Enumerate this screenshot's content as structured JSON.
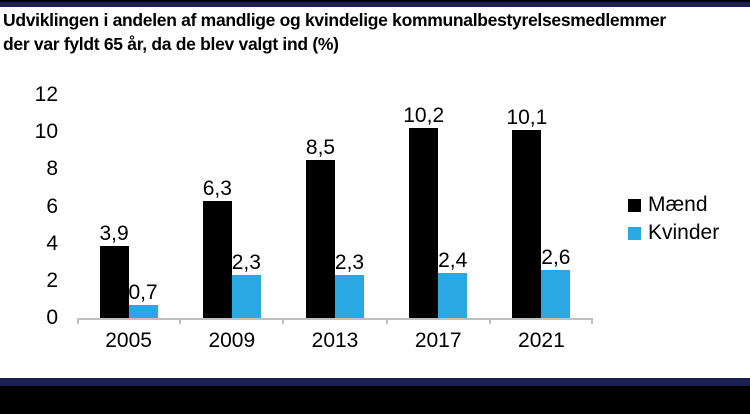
{
  "title": {
    "line1": "Udviklingen i andelen af mandlige og kvindelige kommunalbestyrelsesmedlemmer",
    "line2": "der var fyldt 65 år, da de blev valgt ind (%)"
  },
  "chart_data": {
    "type": "bar",
    "categories": [
      "2005",
      "2009",
      "2013",
      "2017",
      "2021"
    ],
    "series": [
      {
        "name": "Mænd",
        "color": "#000000",
        "values": [
          3.9,
          6.3,
          8.5,
          10.2,
          10.1
        ],
        "labels": [
          "3,9",
          "6,3",
          "8,5",
          "10,2",
          "10,1"
        ]
      },
      {
        "name": "Kvinder",
        "color": "#29A8E4",
        "values": [
          0.7,
          2.3,
          2.3,
          2.4,
          2.6
        ],
        "labels": [
          "0,7",
          "2,3",
          "2,3",
          "2,4",
          "2,6"
        ]
      }
    ],
    "y_ticks": [
      0,
      2,
      4,
      6,
      8,
      10,
      12
    ],
    "ylim": [
      0,
      12
    ],
    "grid": false,
    "legend_position": "right",
    "xlabel": "",
    "ylabel": ""
  },
  "colors": {
    "accent_navy": "#1A2052",
    "bar_black": "#000000",
    "bar_blue": "#29A8E4",
    "axis_gray": "#BFBFBF",
    "background": "#FFFFFF",
    "text": "#000000"
  }
}
